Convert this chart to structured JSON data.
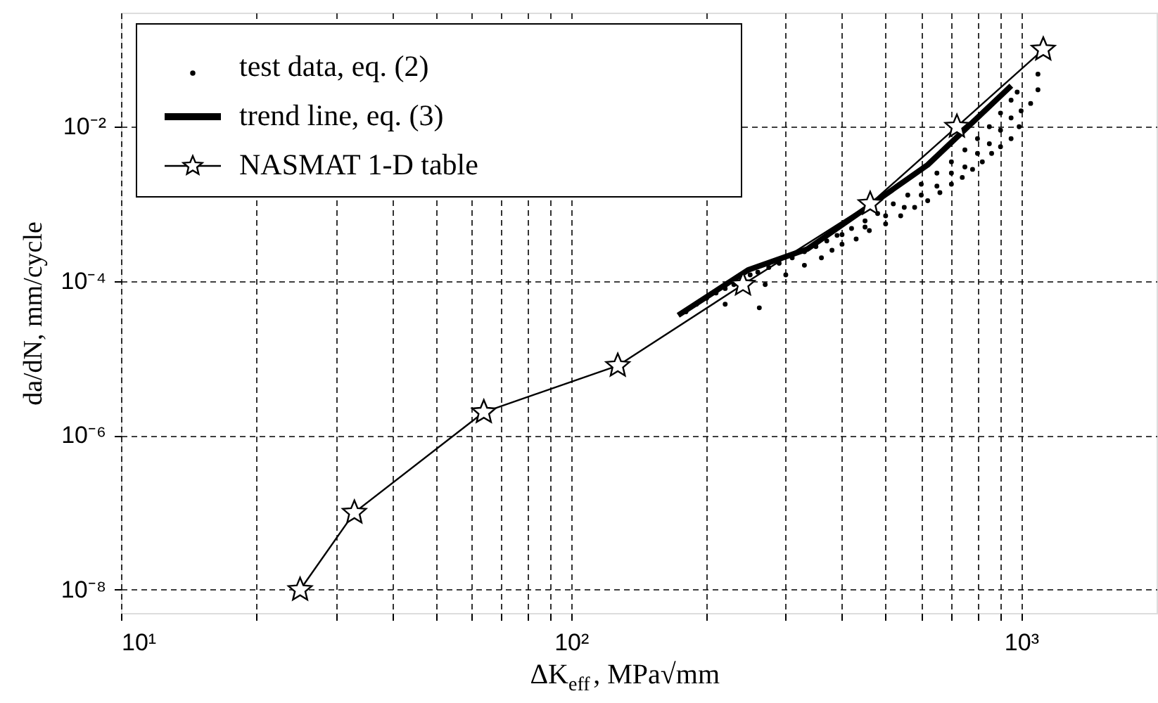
{
  "chart_data": {
    "type": "line",
    "xlabel": "ΔK$_{eff}$, MPa√mm",
    "ylabel": "da/dN, mm/cycle",
    "log": "xy",
    "xlim": [
      10,
      2000
    ],
    "ylim": [
      5e-09,
      0.3
    ],
    "xticks": [
      {
        "value": 10,
        "label": "10¹"
      },
      {
        "value": 20,
        "label": null
      },
      {
        "value": 30,
        "label": null
      },
      {
        "value": 40,
        "label": null
      },
      {
        "value": 50,
        "label": null
      },
      {
        "value": 60,
        "label": null
      },
      {
        "value": 70,
        "label": null
      },
      {
        "value": 80,
        "label": null
      },
      {
        "value": 90,
        "label": null
      },
      {
        "value": 100,
        "label": "10²"
      },
      {
        "value": 200,
        "label": null
      },
      {
        "value": 300,
        "label": null
      },
      {
        "value": 400,
        "label": null
      },
      {
        "value": 500,
        "label": null
      },
      {
        "value": 600,
        "label": null
      },
      {
        "value": 700,
        "label": null
      },
      {
        "value": 800,
        "label": null
      },
      {
        "value": 900,
        "label": null
      },
      {
        "value": 1000,
        "label": "10³"
      }
    ],
    "yticks": [
      {
        "value": 1e-08,
        "label": "10⁻⁸"
      },
      {
        "value": 1e-06,
        "label": "10⁻⁶"
      },
      {
        "value": 0.0001,
        "label": "10⁻⁴"
      },
      {
        "value": 0.01,
        "label": "10⁻²"
      }
    ],
    "grid": true,
    "legend": "top left",
    "series": [
      {
        "name": "test data, eq. (2)",
        "type": "scatter",
        "marker": "circle",
        "color": "#000000",
        "x": [
          180,
          190,
          200,
          210,
          220,
          230,
          250,
          260,
          275,
          290,
          310,
          330,
          350,
          370,
          390,
          420,
          450,
          480,
          520,
          560,
          600,
          650,
          700,
          750,
          800,
          850,
          900,
          950,
          220,
          262,
          270,
          300,
          330,
          360,
          380,
          400,
          430,
          460,
          500,
          540,
          580,
          620,
          660,
          700,
          740,
          780,
          820,
          860,
          900,
          950,
          990,
          1000,
          1050,
          1090,
          1090,
          400,
          450,
          500,
          550,
          600,
          650,
          700,
          750,
          800,
          850,
          900,
          950,
          980
        ],
        "values": [
          4e-05,
          5e-05,
          6e-05,
          7e-05,
          8e-05,
          9e-05,
          0.00012,
          0.00013,
          0.00015,
          0.00017,
          0.0002,
          0.00024,
          0.00028,
          0.00033,
          0.00039,
          0.00048,
          0.0006,
          0.00075,
          0.001,
          0.0013,
          0.0018,
          0.0025,
          0.0035,
          0.005,
          0.007,
          0.01,
          0.015,
          0.022,
          5e-05,
          4.5e-05,
          9e-05,
          0.00012,
          0.00016,
          0.0002,
          0.00025,
          0.0003,
          0.00035,
          0.00045,
          0.00055,
          0.0007,
          0.0009,
          0.0011,
          0.0014,
          0.0018,
          0.0022,
          0.0028,
          0.0035,
          0.0045,
          0.0055,
          0.007,
          0.01,
          0.016,
          0.02,
          0.03,
          0.048,
          0.0004,
          0.0005,
          0.0007,
          0.0009,
          0.0013,
          0.0017,
          0.0025,
          0.003,
          0.0045,
          0.006,
          0.009,
          0.013,
          0.028
        ]
      },
      {
        "name": "trend line, eq. (3)",
        "marker": "none",
        "line_style": "solid",
        "color": "#000000",
        "x": [
          173,
          248,
          335,
          455,
          620,
          951
        ],
        "values": [
          3.6e-05,
          0.00014,
          0.00026,
          0.0009,
          0.0032,
          0.034
        ]
      },
      {
        "name": "NASMAT 1-D table",
        "marker": "star",
        "line_style": "solid",
        "color": "#000000",
        "x": [
          25,
          33,
          64,
          127,
          241,
          462,
          720,
          1120
        ],
        "values": [
          1e-08,
          1e-07,
          2e-06,
          8e-06,
          9e-05,
          0.001,
          0.01,
          0.1
        ]
      }
    ]
  }
}
